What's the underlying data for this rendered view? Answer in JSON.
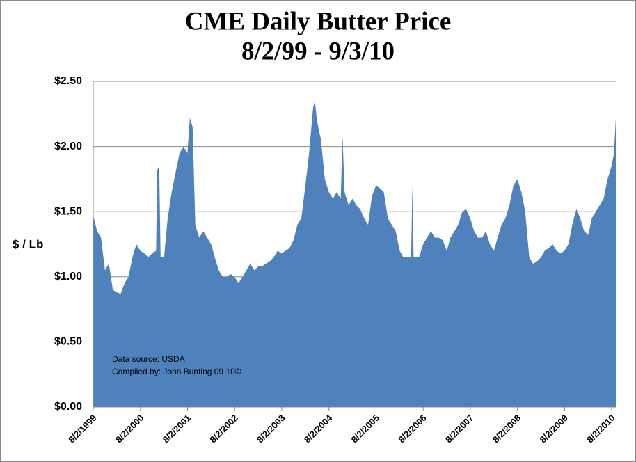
{
  "chart_data": {
    "type": "area",
    "title": "CME Daily Butter Price",
    "subtitle": "8/2/99 - 9/3/10",
    "y_label": "$ / Lb",
    "annotations": [
      "Data source: USDA",
      "Compiled by: John Bunting 09 10©"
    ],
    "grid": true,
    "xlim": [
      "8/2/1999",
      "9/3/2010"
    ],
    "xticks": [
      "8/2/1999",
      "8/2/2000",
      "8/2/2001",
      "8/2/2002",
      "8/2/2003",
      "8/2/2004",
      "8/2/2005",
      "8/2/2006",
      "8/2/2007",
      "8/2/2008",
      "8/2/2009",
      "8/2/2010"
    ],
    "ylim": [
      0,
      2.5
    ],
    "yticks": [
      {
        "value": 0,
        "label": "$0.00"
      },
      {
        "value": 0.5,
        "label": "$0.50"
      },
      {
        "value": 1,
        "label": "$1.00"
      },
      {
        "value": 1.5,
        "label": "$1.50"
      },
      {
        "value": 2,
        "label": "$2.00"
      },
      {
        "value": 2.5,
        "label": "$2.50"
      }
    ],
    "series": [
      {
        "color": "#4f81bd",
        "x": [
          "8/2/1999",
          "9/1/1999",
          "10/1/1999",
          "11/1/1999",
          "12/1/1999",
          "1/1/2000",
          "2/1/2000",
          "3/1/2000",
          "4/1/2000",
          "5/1/2000",
          "6/1/2000",
          "7/1/2000",
          "8/1/2000",
          "9/1/2000",
          "10/1/2000",
          "11/1/2000",
          "12/1/2000",
          "12/10/2000",
          "12/25/2000",
          "1/5/2001",
          "2/1/2001",
          "3/1/2001",
          "4/1/2001",
          "5/1/2001",
          "6/1/2001",
          "7/1/2001",
          "8/1/2001",
          "8/20/2001",
          "9/10/2001",
          "10/1/2001",
          "11/1/2001",
          "12/1/2001",
          "1/1/2002",
          "2/1/2002",
          "3/1/2002",
          "4/1/2002",
          "5/1/2002",
          "6/1/2002",
          "7/1/2002",
          "8/1/2002",
          "9/1/2002",
          "10/1/2002",
          "11/1/2002",
          "12/1/2002",
          "1/1/2003",
          "2/1/2003",
          "3/1/2003",
          "4/1/2003",
          "5/1/2003",
          "6/1/2003",
          "7/1/2003",
          "8/1/2003",
          "9/1/2003",
          "10/1/2003",
          "11/1/2003",
          "12/1/2003",
          "1/1/2004",
          "2/1/2004",
          "3/1/2004",
          "4/1/2004",
          "4/15/2004",
          "5/1/2004",
          "6/1/2004",
          "7/1/2004",
          "8/1/2004",
          "9/1/2004",
          "10/1/2004",
          "11/1/2004",
          "11/15/2004",
          "12/1/2004",
          "1/1/2005",
          "2/1/2005",
          "3/1/2005",
          "4/1/2005",
          "5/1/2005",
          "6/1/2005",
          "7/1/2005",
          "8/1/2005",
          "9/1/2005",
          "10/1/2005",
          "11/1/2005",
          "12/1/2005",
          "1/1/2006",
          "2/1/2006",
          "3/1/2006",
          "4/1/2006",
          "5/1/2006",
          "5/10/2006",
          "5/20/2006",
          "6/1/2006",
          "7/1/2006",
          "8/1/2006",
          "9/1/2006",
          "10/1/2006",
          "11/1/2006",
          "12/1/2006",
          "1/1/2007",
          "2/1/2007",
          "3/1/2007",
          "4/1/2007",
          "5/1/2007",
          "6/1/2007",
          "7/1/2007",
          "8/1/2007",
          "9/1/2007",
          "10/1/2007",
          "11/1/2007",
          "12/1/2007",
          "1/1/2008",
          "2/1/2008",
          "3/1/2008",
          "4/1/2008",
          "5/1/2008",
          "6/1/2008",
          "7/1/2008",
          "8/1/2008",
          "9/1/2008",
          "10/1/2008",
          "11/1/2008",
          "12/1/2008",
          "1/1/2009",
          "2/1/2009",
          "3/1/2009",
          "4/1/2009",
          "5/1/2009",
          "6/1/2009",
          "7/1/2009",
          "8/1/2009",
          "9/1/2009",
          "10/1/2009",
          "11/1/2009",
          "12/1/2009",
          "1/1/2010",
          "2/1/2010",
          "3/1/2010",
          "4/1/2010",
          "5/1/2010",
          "6/1/2010",
          "7/1/2010",
          "8/1/2010",
          "8/20/2010",
          "9/3/2010"
        ],
        "values": [
          1.47,
          1.35,
          1.3,
          1.05,
          1.1,
          0.9,
          0.88,
          0.87,
          0.95,
          1.0,
          1.15,
          1.25,
          1.2,
          1.18,
          1.15,
          1.18,
          1.2,
          1.82,
          1.85,
          1.15,
          1.15,
          1.45,
          1.65,
          1.8,
          1.95,
          2.0,
          1.95,
          2.22,
          2.15,
          1.4,
          1.3,
          1.35,
          1.3,
          1.25,
          1.15,
          1.05,
          1.0,
          1.0,
          1.02,
          1.0,
          0.95,
          1.0,
          1.05,
          1.1,
          1.05,
          1.08,
          1.08,
          1.1,
          1.12,
          1.15,
          1.2,
          1.18,
          1.2,
          1.22,
          1.28,
          1.4,
          1.45,
          1.7,
          1.95,
          2.3,
          2.35,
          2.2,
          2.05,
          1.75,
          1.65,
          1.6,
          1.65,
          1.6,
          2.08,
          1.65,
          1.55,
          1.6,
          1.55,
          1.52,
          1.45,
          1.4,
          1.62,
          1.7,
          1.68,
          1.65,
          1.45,
          1.4,
          1.35,
          1.2,
          1.15,
          1.15,
          1.15,
          1.7,
          1.15,
          1.15,
          1.15,
          1.25,
          1.3,
          1.35,
          1.3,
          1.3,
          1.28,
          1.2,
          1.3,
          1.35,
          1.4,
          1.5,
          1.52,
          1.45,
          1.35,
          1.3,
          1.3,
          1.35,
          1.25,
          1.2,
          1.3,
          1.4,
          1.45,
          1.55,
          1.7,
          1.75,
          1.65,
          1.5,
          1.15,
          1.1,
          1.12,
          1.15,
          1.2,
          1.22,
          1.25,
          1.2,
          1.18,
          1.2,
          1.25,
          1.4,
          1.52,
          1.45,
          1.35,
          1.32,
          1.45,
          1.5,
          1.55,
          1.6,
          1.75,
          1.85,
          1.95,
          2.22
        ]
      }
    ]
  }
}
